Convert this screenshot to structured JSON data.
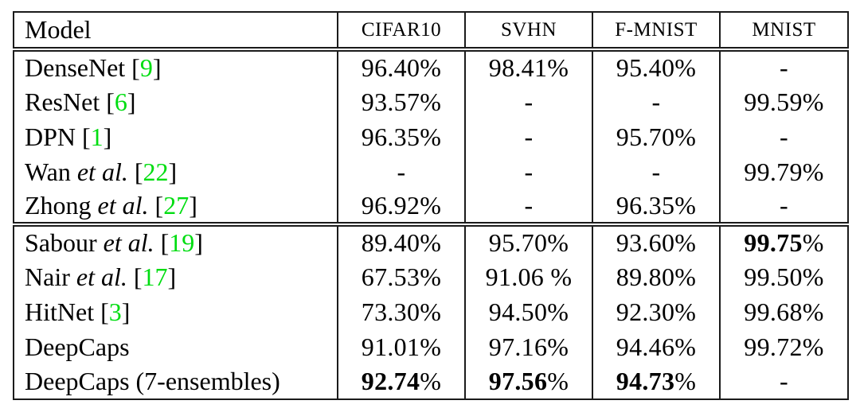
{
  "colors": {
    "citation_green": "#00dd11",
    "border": "#1b1b1b",
    "text": "#000000",
    "background": "#ffffff"
  },
  "table": {
    "columns": [
      "Model",
      "CIFAR10",
      "SVHN",
      "F-MNIST",
      "MNIST"
    ],
    "cite_open": "[",
    "cite_close": "]",
    "groups": [
      {
        "rows": [
          {
            "name": "DenseNet",
            "etal": null,
            "cite": "9",
            "values": [
              {
                "text": "96.40%"
              },
              {
                "text": "98.41%"
              },
              {
                "text": "95.40%"
              },
              {
                "text": "-"
              }
            ]
          },
          {
            "name": "ResNet",
            "etal": null,
            "cite": "6",
            "values": [
              {
                "text": "93.57%"
              },
              {
                "text": "-"
              },
              {
                "text": "-"
              },
              {
                "text": "99.59%"
              }
            ]
          },
          {
            "name": "DPN",
            "etal": null,
            "cite": "1",
            "values": [
              {
                "text": "96.35%"
              },
              {
                "text": "-"
              },
              {
                "text": "95.70%"
              },
              {
                "text": "-"
              }
            ]
          },
          {
            "name": "Wan",
            "etal": "et al.",
            "cite": "22",
            "values": [
              {
                "text": "-"
              },
              {
                "text": "-"
              },
              {
                "text": "-"
              },
              {
                "text": "99.79%"
              }
            ]
          },
          {
            "name": "Zhong",
            "etal": "et al.",
            "cite": "27",
            "values": [
              {
                "text": "96.92%"
              },
              {
                "text": "-"
              },
              {
                "text": "96.35%"
              },
              {
                "text": "-"
              }
            ]
          }
        ]
      },
      {
        "rows": [
          {
            "name": "Sabour",
            "etal": "et al.",
            "cite": "19",
            "values": [
              {
                "text": "89.40%"
              },
              {
                "text": "95.70%"
              },
              {
                "text": "93.60%"
              },
              {
                "bold": "99.75",
                "text": "%"
              }
            ]
          },
          {
            "name": "Nair",
            "etal": "et al.",
            "cite": "17",
            "values": [
              {
                "text": "67.53%"
              },
              {
                "text": "91.06 %"
              },
              {
                "text": "89.80%"
              },
              {
                "text": "99.50%"
              }
            ]
          },
          {
            "name": "HitNet",
            "etal": null,
            "cite": "3",
            "values": [
              {
                "text": "73.30%"
              },
              {
                "text": "94.50%"
              },
              {
                "text": "92.30%"
              },
              {
                "text": "99.68%"
              }
            ]
          },
          {
            "name": "DeepCaps",
            "etal": null,
            "cite": null,
            "values": [
              {
                "text": "91.01%"
              },
              {
                "text": "97.16%"
              },
              {
                "text": "94.46%"
              },
              {
                "text": "99.72%"
              }
            ]
          },
          {
            "name": "DeepCaps (7-ensembles)",
            "etal": null,
            "cite": null,
            "values": [
              {
                "bold": "92.74",
                "text": "%"
              },
              {
                "bold": "97.56",
                "text": "%"
              },
              {
                "bold": "94.73",
                "text": "%"
              },
              {
                "text": "-"
              }
            ]
          }
        ]
      }
    ]
  }
}
